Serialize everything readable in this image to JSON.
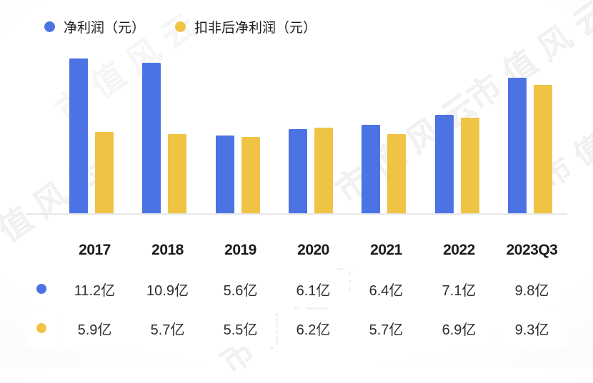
{
  "watermark": {
    "text": "市值风云"
  },
  "chart_data": {
    "type": "bar",
    "title": "",
    "categories": [
      "2017",
      "2018",
      "2019",
      "2020",
      "2021",
      "2022",
      "2023Q3"
    ],
    "series": [
      {
        "name": "净利润（元）",
        "color": "#4b73e3",
        "values": [
          11.2,
          10.9,
          5.6,
          6.1,
          6.4,
          7.1,
          9.8
        ],
        "unit": "亿"
      },
      {
        "name": "扣非后净利润（元）",
        "color": "#efc344",
        "values": [
          5.9,
          5.7,
          5.5,
          6.2,
          5.7,
          6.9,
          9.3
        ],
        "unit": "亿"
      }
    ],
    "ylim": [
      0,
      11.8
    ],
    "grid": false,
    "legend_position": "top-left"
  },
  "table": {
    "headers": [
      "",
      "2017",
      "2018",
      "2019",
      "2020",
      "2021",
      "2022",
      "2023Q3"
    ],
    "rows": [
      {
        "series": "净利润（元）",
        "dot_color": "#4b73e3",
        "values": [
          "11.2亿",
          "10.9亿",
          "5.6亿",
          "6.1亿",
          "6.4亿",
          "7.1亿",
          "9.8亿"
        ]
      },
      {
        "series": "扣非后净利润（元）",
        "dot_color": "#efc344",
        "values": [
          "5.9亿",
          "5.7亿",
          "5.5亿",
          "6.2亿",
          "5.7亿",
          "6.9亿",
          "9.3亿"
        ]
      }
    ]
  }
}
